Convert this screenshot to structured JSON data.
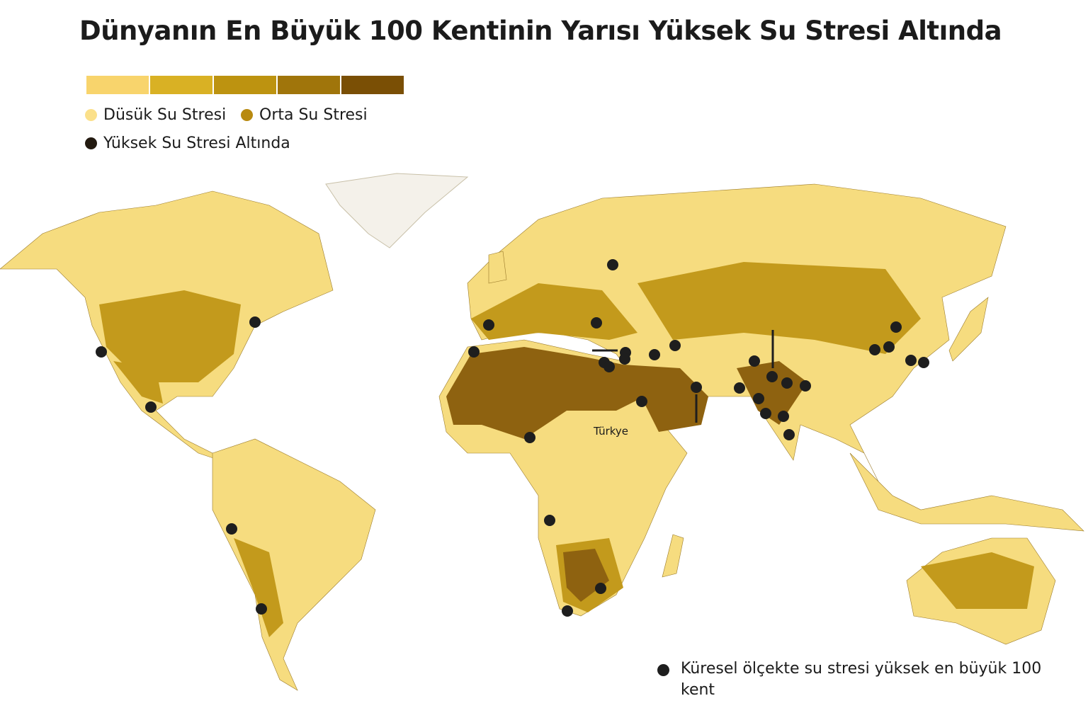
{
  "title": "Dünyanın En Büyük 100 Kentinin Yarısı Yüksek Su Stresi Altında",
  "legend": {
    "scale_colors": [
      "#f8d46c",
      "#d9b124",
      "#bd9310",
      "#a0750b",
      "#7a4f05"
    ],
    "items": [
      {
        "label": "Düsük Su Stresi",
        "color": "#fbe08a"
      },
      {
        "label": "Orta Su Stresi",
        "color": "#b88a10"
      },
      {
        "label": "Yüksek Su Stresi Altında",
        "color": "#231a10"
      }
    ]
  },
  "map": {
    "label": "Türkye",
    "colors": {
      "low": "#f6dc7f",
      "medium": "#c39a1c",
      "high": "#8e6210",
      "ice": "#f4f1ea",
      "city": "#1e1e1e"
    }
  },
  "footnote": "Küresel ölçekte su stresi yüksek en büyük 100 kent"
}
